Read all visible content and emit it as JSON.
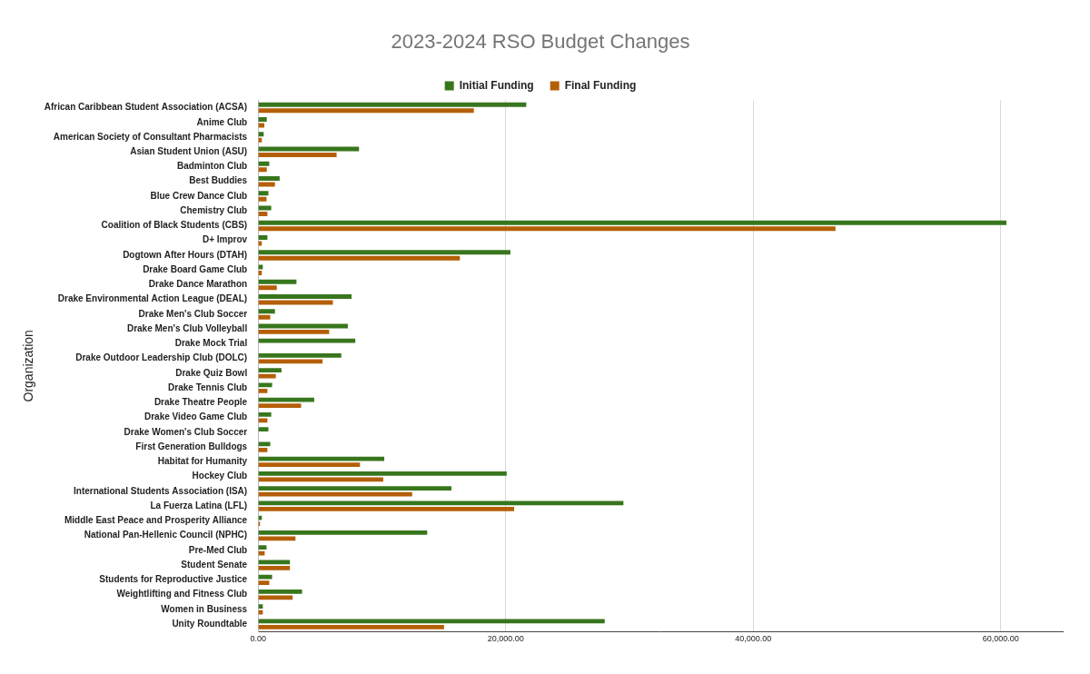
{
  "chart_data": {
    "type": "bar",
    "title": "2023-2024 RSO Budget Changes",
    "orientation": "horizontal",
    "grid": true,
    "legend": "top",
    "y_label": "Organization",
    "categories": [
      "African Caribbean Student Association (ACSA)",
      "Anime Club",
      "American Society of Consultant Pharmacists",
      "Asian Student Union (ASU)",
      "Badminton Club",
      "Best Buddies",
      "Blue Crew Dance Club",
      "Chemistry Club",
      "Coalition of Black Students (CBS)",
      "D+ Improv",
      "Dogtown After Hours (DTAH)",
      "Drake Board Game Club",
      "Drake Dance Marathon",
      "Drake Environmental Action League (DEAL)",
      "Drake Men's Club Soccer",
      "Drake Men's Club Volleyball",
      "Drake Mock Trial",
      "Drake Outdoor Leadership Club (DOLC)",
      "Drake Quiz Bowl",
      "Drake Tennis Club",
      "Drake Theatre People",
      "Drake Video Game Club",
      "Drake Women's Club Soccer",
      "First Generation Bulldogs",
      "Habitat for Humanity",
      "Hockey Club",
      "International Students Association (ISA)",
      "La Fuerza Latina (LFL)",
      "Middle East Peace and Prosperity Alliance",
      "National Pan-Hellenic Council (NPHC)",
      "Pre-Med Club",
      "Student Senate",
      "Students for Reproductive Justice",
      "Weightlifting and Fitness Club",
      "Women in Business",
      "Unity Roundtable"
    ],
    "series": [
      {
        "name": "Initial Funding",
        "color": "#38761d",
        "values": [
          21660,
          700,
          450,
          8150,
          900,
          1740,
          830,
          1060,
          60450,
          750,
          20380,
          380,
          3100,
          7550,
          1360,
          7250,
          7850,
          6720,
          1890,
          1130,
          4530,
          1060,
          830,
          980,
          10190,
          20080,
          15620,
          29510,
          300,
          13660,
          680,
          2570,
          1130,
          3550,
          380,
          28000
        ]
      },
      {
        "name": "Final Funding",
        "color": "#b45f06",
        "values": [
          17430,
          500,
          300,
          6340,
          700,
          1360,
          680,
          750,
          46640,
          300,
          16300,
          300,
          1510,
          6040,
          980,
          5740,
          0,
          5210,
          1430,
          750,
          3470,
          750,
          0,
          750,
          8230,
          10110,
          12450,
          20680,
          150,
          3020,
          530,
          2570,
          900,
          2790,
          380,
          15020
        ]
      }
    ],
    "xlim": [
      0,
      65000
    ],
    "xticks": [
      {
        "value": 0,
        "label": "0.00"
      },
      {
        "value": 20000,
        "label": "20,000.00"
      },
      {
        "value": 40000,
        "label": "40,000.00"
      },
      {
        "value": 60000,
        "label": "60,000.00"
      }
    ]
  }
}
